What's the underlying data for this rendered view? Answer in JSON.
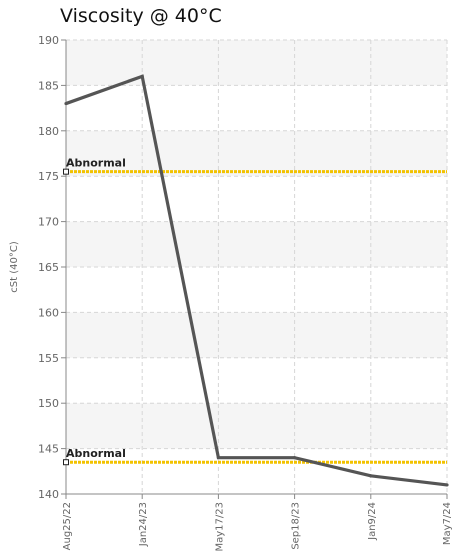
{
  "chart_data": {
    "type": "line",
    "title": "Viscosity @ 40°C",
    "ylabel": "cSt (40°C)",
    "xlabel": "",
    "ylim": [
      140,
      190
    ],
    "yticks": [
      140,
      145,
      150,
      155,
      160,
      165,
      170,
      175,
      180,
      185,
      190
    ],
    "categories": [
      "Aug25/22",
      "Jan24/23",
      "May17/23",
      "Sep18/23",
      "Jan9/24",
      "May7/24"
    ],
    "series": [
      {
        "values": [
          183,
          186,
          144,
          144,
          142,
          141
        ],
        "color": "#555555"
      }
    ],
    "thresholds": [
      {
        "label": "Abnormal",
        "value": 175.5,
        "color": "#f2c200"
      },
      {
        "label": "Abnormal",
        "value": 143.5,
        "color": "#f2c200"
      }
    ],
    "grid": true,
    "legend": "none"
  }
}
